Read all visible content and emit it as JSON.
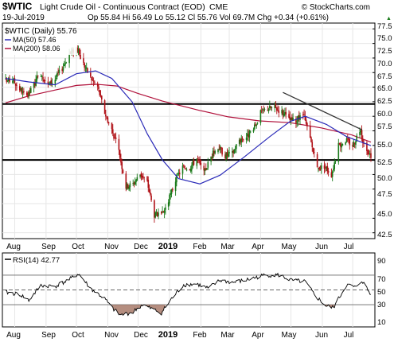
{
  "header": {
    "symbol": "$WTIC",
    "title": "Light Crude Oil - Continuous Contract (EOD)",
    "exchange": "CME",
    "date": "19-Jul-2019",
    "quote": "Op 55.84  Hi 56.49  Lo 55.12  Cl 55.76  Vol 69.7M  Chg +0.34 (+0.61%)",
    "quote_arrow": "▲",
    "watermark": "© StockCharts.com"
  },
  "colors": {
    "price_up": "#1a7a1a",
    "price_down": "#b01016",
    "ma50": "#2a2ab8",
    "ma200": "#b0103a",
    "rsi_fill": "#a87a6a",
    "hline": "#000000"
  },
  "chart_data": [
    {
      "type": "candlestick",
      "title": "$WTIC (Daily) 55.76",
      "legend": [
        {
          "name": "$WTIC (Daily) 55.76",
          "color": "#000000"
        },
        {
          "name": "MA(50) 57.46",
          "color": "#2a2ab8"
        },
        {
          "name": "MA(200) 58.06",
          "color": "#b0103a"
        }
      ],
      "ylim": [
        41.5,
        78.5
      ],
      "yticks": [
        "77.5",
        "75.0",
        "72.5",
        "70.0",
        "67.5",
        "65.0",
        "62.5",
        "60.0",
        "57.5",
        "55.0",
        "52.5",
        "50.0",
        "47.5",
        "45.0",
        "42.5"
      ],
      "xlabels": [
        "Aug",
        "Sep",
        "Oct",
        "Nov",
        "Dec",
        "2019",
        "Feb",
        "Mar",
        "Apr",
        "May",
        "Jun",
        "Jul"
      ],
      "horizontal_lines": [
        64.6,
        55.0
      ],
      "trendline": {
        "from": [
          "2019-04-23",
          66.6
        ],
        "to": [
          "2019-07-10",
          60.2
        ]
      },
      "close": [
        [
          "2018-07-23",
          68.5
        ],
        [
          "2018-07-30",
          68.8
        ],
        [
          "2018-08-06",
          67.2
        ],
        [
          "2018-08-13",
          65.6
        ],
        [
          "2018-08-20",
          68.0
        ],
        [
          "2018-08-27",
          69.9
        ],
        [
          "2018-09-03",
          67.8
        ],
        [
          "2018-09-10",
          68.9
        ],
        [
          "2018-09-17",
          70.8
        ],
        [
          "2018-09-24",
          73.2
        ],
        [
          "2018-10-01",
          74.3
        ],
        [
          "2018-10-08",
          71.5
        ],
        [
          "2018-10-15",
          69.1
        ],
        [
          "2018-10-22",
          67.6
        ],
        [
          "2018-10-29",
          63.1
        ],
        [
          "2018-11-05",
          60.2
        ],
        [
          "2018-11-12",
          56.5
        ],
        [
          "2018-11-19",
          50.4
        ],
        [
          "2018-11-26",
          50.9
        ],
        [
          "2018-12-03",
          52.6
        ],
        [
          "2018-12-10",
          51.2
        ],
        [
          "2018-12-17",
          45.6
        ],
        [
          "2018-12-24",
          45.3
        ],
        [
          "2018-12-31",
          48.0
        ],
        [
          "2019-01-07",
          51.6
        ],
        [
          "2019-01-14",
          53.8
        ],
        [
          "2019-01-21",
          53.7
        ],
        [
          "2019-01-28",
          55.3
        ],
        [
          "2019-02-04",
          52.7
        ],
        [
          "2019-02-11",
          55.6
        ],
        [
          "2019-02-18",
          57.3
        ],
        [
          "2019-02-25",
          55.8
        ],
        [
          "2019-03-04",
          56.1
        ],
        [
          "2019-03-11",
          58.5
        ],
        [
          "2019-03-18",
          59.0
        ],
        [
          "2019-03-25",
          60.1
        ],
        [
          "2019-04-01",
          63.1
        ],
        [
          "2019-04-08",
          63.9
        ],
        [
          "2019-04-15",
          64.0
        ],
        [
          "2019-04-22",
          63.3
        ],
        [
          "2019-04-29",
          61.9
        ],
        [
          "2019-05-06",
          61.7
        ],
        [
          "2019-05-13",
          62.8
        ],
        [
          "2019-05-20",
          58.6
        ],
        [
          "2019-05-27",
          53.5
        ],
        [
          "2019-06-03",
          54.0
        ],
        [
          "2019-06-10",
          52.5
        ],
        [
          "2019-06-17",
          57.4
        ],
        [
          "2019-06-24",
          58.5
        ],
        [
          "2019-07-01",
          57.5
        ],
        [
          "2019-07-08",
          60.2
        ],
        [
          "2019-07-15",
          56.0
        ],
        [
          "2019-07-19",
          55.76
        ]
      ],
      "ma50": [
        [
          "2018-07-23",
          69.0
        ],
        [
          "2018-08-15",
          68.4
        ],
        [
          "2018-09-10",
          67.9
        ],
        [
          "2018-10-01",
          69.8
        ],
        [
          "2018-10-20",
          70.3
        ],
        [
          "2018-11-05",
          69.0
        ],
        [
          "2018-11-25",
          65.0
        ],
        [
          "2018-12-10",
          59.5
        ],
        [
          "2018-12-25",
          55.0
        ],
        [
          "2019-01-10",
          51.8
        ],
        [
          "2019-01-31",
          50.9
        ],
        [
          "2019-02-20",
          52.4
        ],
        [
          "2019-03-15",
          55.4
        ],
        [
          "2019-04-10",
          59.0
        ],
        [
          "2019-04-30",
          61.6
        ],
        [
          "2019-05-15",
          62.5
        ],
        [
          "2019-06-05",
          61.1
        ],
        [
          "2019-06-25",
          59.0
        ],
        [
          "2019-07-19",
          57.46
        ]
      ],
      "ma200": [
        [
          "2018-07-23",
          64.8
        ],
        [
          "2018-08-15",
          66.0
        ],
        [
          "2018-09-10",
          67.0
        ],
        [
          "2018-10-01",
          67.8
        ],
        [
          "2018-10-20",
          68.0
        ],
        [
          "2018-11-10",
          67.7
        ],
        [
          "2018-12-01",
          66.4
        ],
        [
          "2018-12-25",
          65.1
        ],
        [
          "2019-01-31",
          63.5
        ],
        [
          "2019-02-28",
          62.4
        ],
        [
          "2019-03-31",
          61.7
        ],
        [
          "2019-04-30",
          61.4
        ],
        [
          "2019-05-31",
          60.5
        ],
        [
          "2019-06-30",
          59.3
        ],
        [
          "2019-07-19",
          58.06
        ]
      ]
    },
    {
      "type": "line",
      "title": "RSI(14) 42.77",
      "ylim": [
        0,
        100
      ],
      "yticks": [
        "90",
        "70",
        "50",
        "30",
        "10"
      ],
      "reference_lines": [
        70,
        50,
        30
      ],
      "xlabels": [
        "Aug",
        "Sep",
        "Oct",
        "Nov",
        "Dec",
        "2019",
        "Feb",
        "Mar",
        "Apr",
        "May",
        "Jun",
        "Jul"
      ],
      "values": [
        [
          "2018-07-23",
          47
        ],
        [
          "2018-08-06",
          44
        ],
        [
          "2018-08-15",
          36
        ],
        [
          "2018-08-27",
          56
        ],
        [
          "2018-09-10",
          55
        ],
        [
          "2018-09-24",
          64
        ],
        [
          "2018-10-03",
          72
        ],
        [
          "2018-10-15",
          52
        ],
        [
          "2018-10-29",
          38
        ],
        [
          "2018-11-05",
          26
        ],
        [
          "2018-11-13",
          16
        ],
        [
          "2018-11-20",
          18
        ],
        [
          "2018-11-26",
          20
        ],
        [
          "2018-12-05",
          30
        ],
        [
          "2018-12-15",
          24
        ],
        [
          "2018-12-24",
          19
        ],
        [
          "2019-01-03",
          38
        ],
        [
          "2019-01-15",
          57
        ],
        [
          "2019-01-28",
          58
        ],
        [
          "2019-02-08",
          52
        ],
        [
          "2019-02-20",
          63
        ],
        [
          "2019-03-05",
          60
        ],
        [
          "2019-03-20",
          64
        ],
        [
          "2019-04-05",
          70
        ],
        [
          "2019-04-20",
          70
        ],
        [
          "2019-05-01",
          63
        ],
        [
          "2019-05-15",
          61
        ],
        [
          "2019-05-25",
          42
        ],
        [
          "2019-06-05",
          28
        ],
        [
          "2019-06-12",
          26
        ],
        [
          "2019-06-25",
          57
        ],
        [
          "2019-07-05",
          53
        ],
        [
          "2019-07-10",
          63
        ],
        [
          "2019-07-19",
          43
        ]
      ]
    }
  ]
}
